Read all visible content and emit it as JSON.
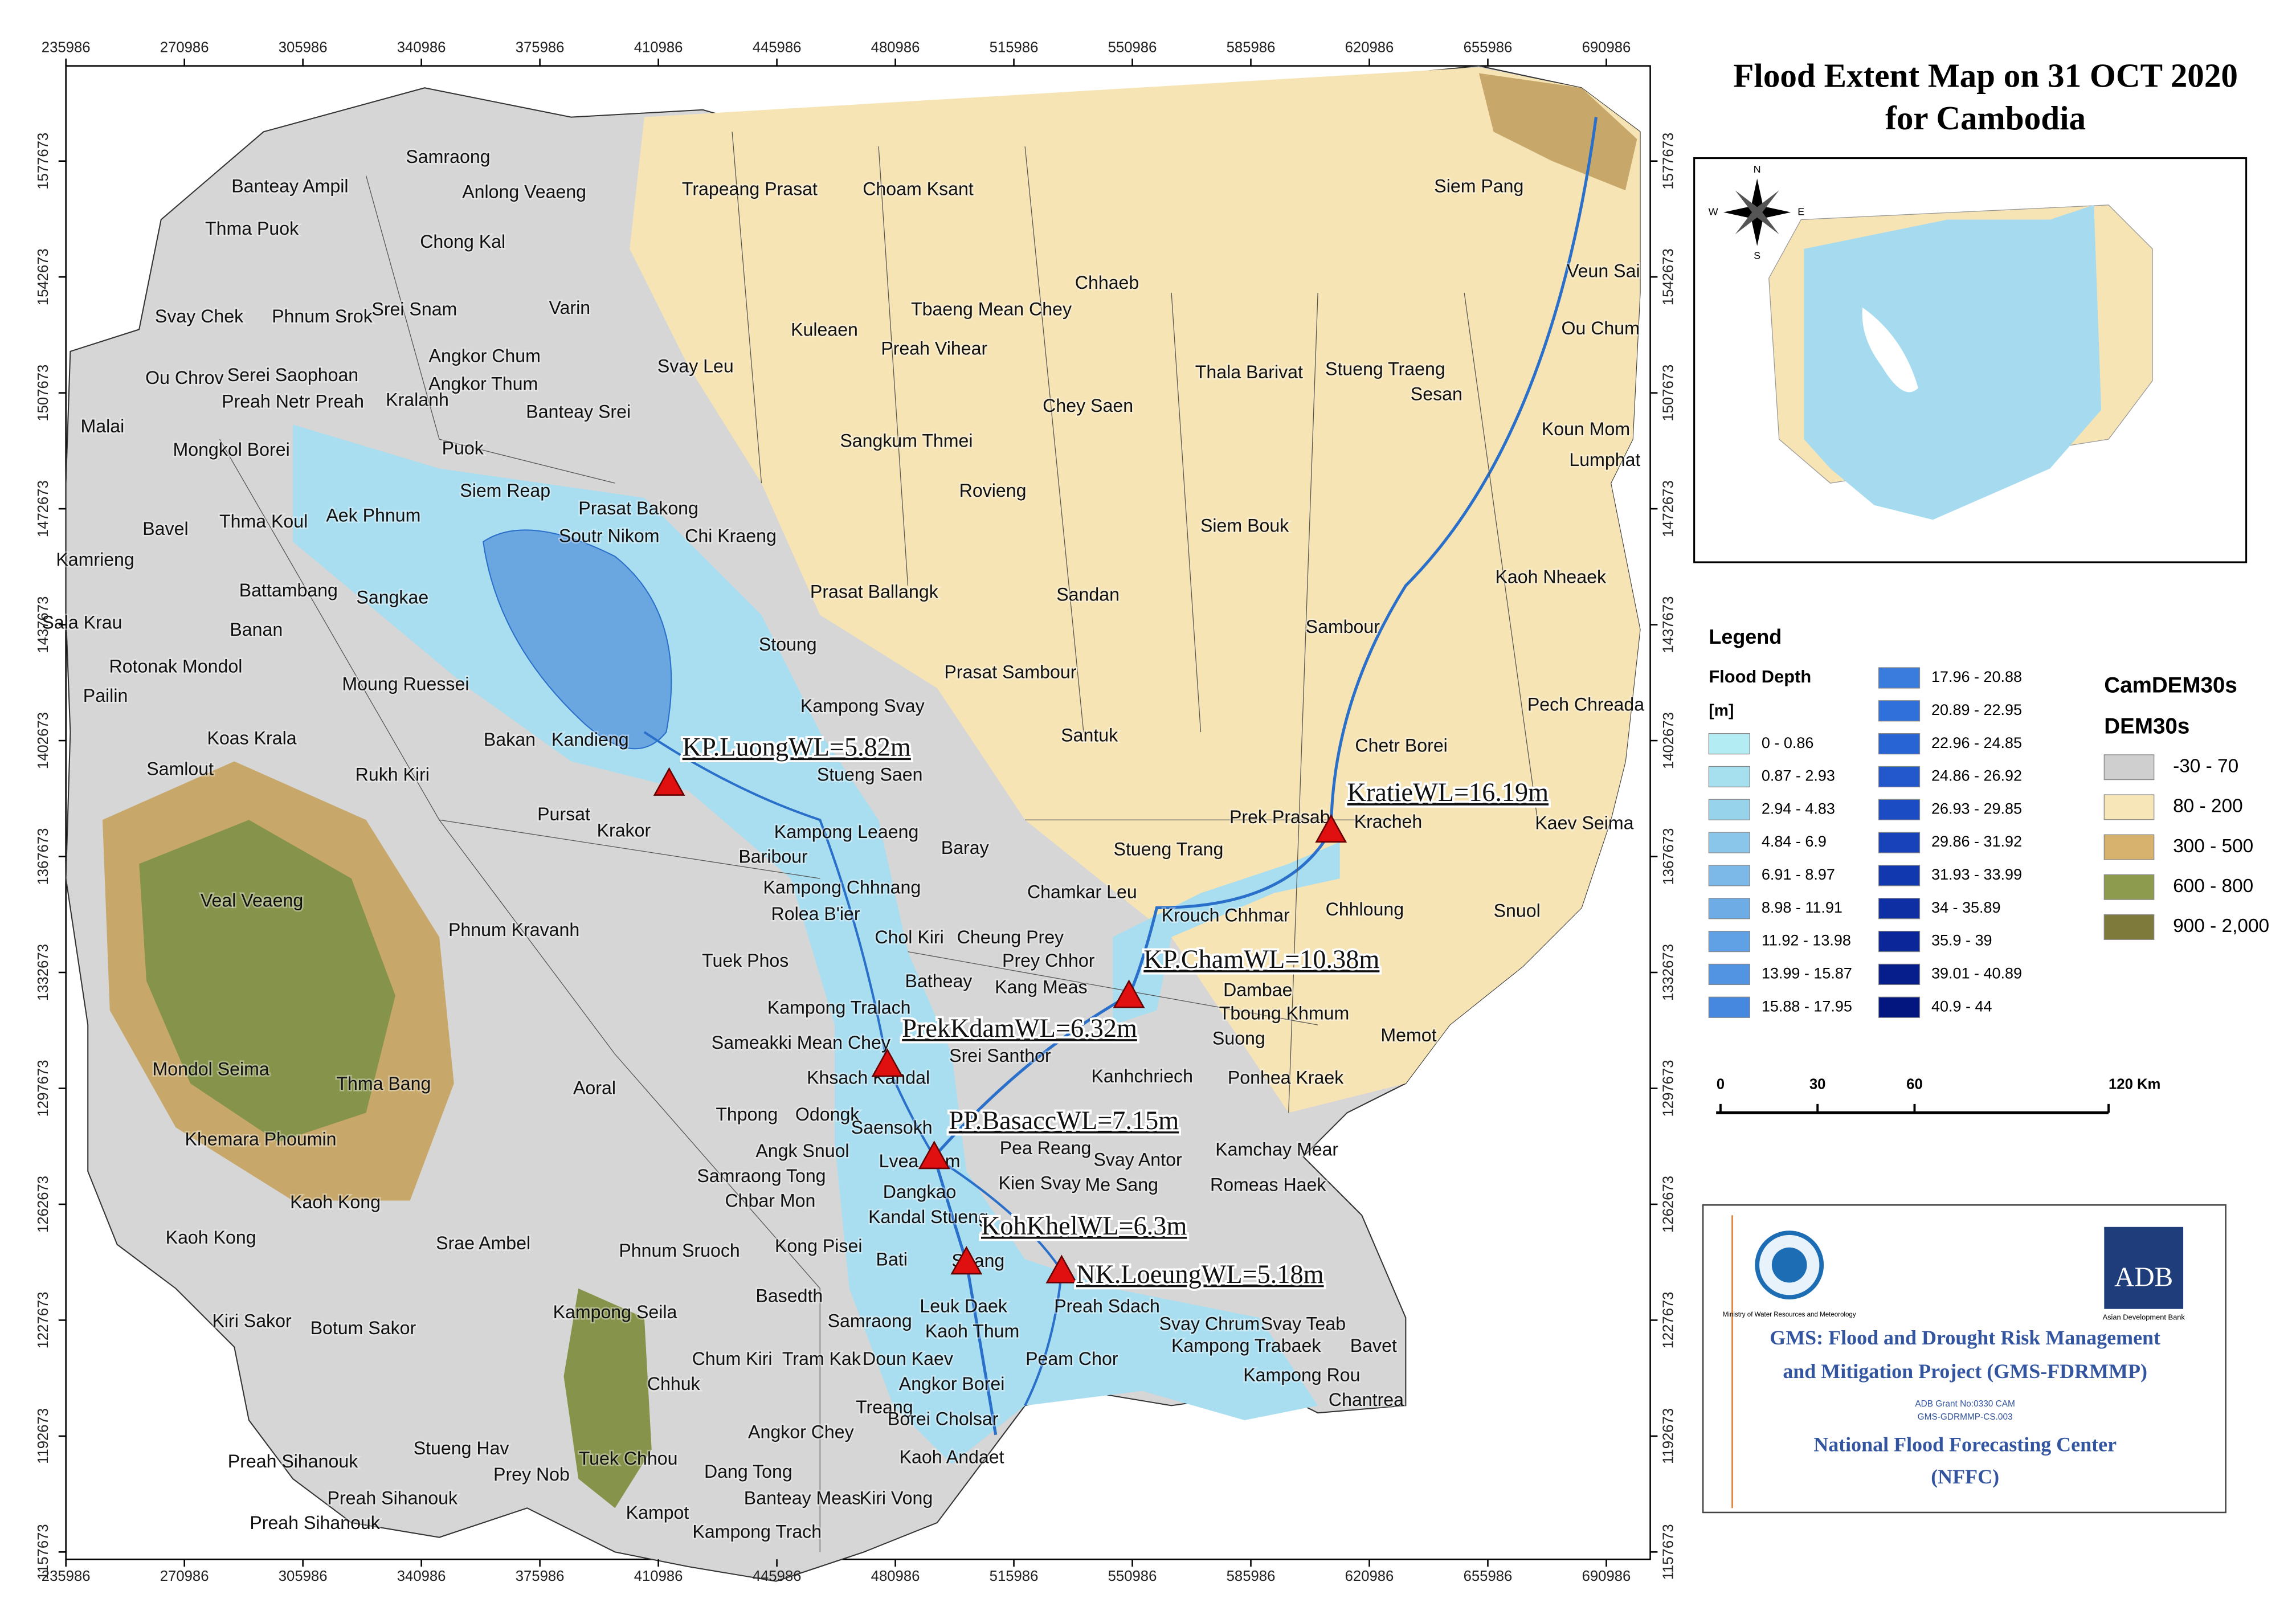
{
  "title_lines": [
    "Flood Extent Map on 31 OCT 2020",
    "for Cambodia"
  ],
  "x_ticks": [
    235986,
    270986,
    305986,
    340986,
    375986,
    410986,
    445986,
    480986,
    515986,
    550986,
    585986,
    620986,
    655986,
    690986
  ],
  "y_ticks": [
    1577673,
    1542673,
    1507673,
    1472673,
    1437673,
    1402673,
    1367673,
    1332673,
    1297673,
    1262673,
    1227673,
    1192673,
    1157673
  ],
  "districts": [
    "Samraong",
    "Banteay Ampil",
    "Anlong Veaeng",
    "Trapeang Prasat",
    "Choam Ksant",
    "Siem Pang",
    "Thma Puok",
    "Chong Kal",
    "Veun Sai",
    "Chhaeb",
    "Svay Chek",
    "Phnum Srok",
    "Srei Snam",
    "Varin",
    "Tbaeng Mean Chey",
    "Kuleaen",
    "Ou Chum",
    "Angkor Chum",
    "Svay Leu",
    "Preah Vihear",
    "Ou Chrov",
    "Serei Saophoan",
    "Angkor Thum",
    "Thala Barivat",
    "Stueng Traeng",
    "Preah Netr Preah",
    "Kralanh",
    "Banteay Srei",
    "Chey Saen",
    "Sesan",
    "Malai",
    "Koun Mom",
    "Mongkol Borei",
    "Puok",
    "Sangkum Thmei",
    "Lumphat",
    "Siem Reap",
    "Rovieng",
    "Prasat Bakong",
    "Aek Phnum",
    "Bavel",
    "Thma Koul",
    "Soutr Nikom",
    "Chi Kraeng",
    "Siem Bouk",
    "Kamrieng",
    "Kaoh Nheaek",
    "Battambang",
    "Sangkae",
    "Prasat Ballangk",
    "Sandan",
    "Sala Krau",
    "Banan",
    "Sambour",
    "Stoung",
    "Rotonak Mondol",
    "Prasat Sambour",
    "Moung Ruessei",
    "Pailin",
    "Kampong Svay",
    "Pech Chreada",
    "Santuk",
    "Koas Krala",
    "Bakan",
    "Kandieng",
    "Chetr Borei",
    "Samlout",
    "Rukh Kiri",
    "Stueng Saen",
    "Pursat",
    "Prek Prasab",
    "Kracheh",
    "Kaev Seima",
    "Krakor",
    "Kampong Leaeng",
    "Baray",
    "Stueng Trang",
    "Baribour",
    "Veal Veaeng",
    "Kampong Chhnang",
    "Chamkar Leu",
    "Rolea B'ier",
    "Chhloung",
    "Snuol",
    "Phnum Kravanh",
    "Krouch Chhmar",
    "Chol Kiri",
    "Cheung Prey",
    "Tuek Phos",
    "Prey Chhor",
    "Batheay",
    "Kang Meas",
    "Dambae",
    "Kampong Tralach",
    "Tboung Khmum",
    "Sameakki Mean Chey",
    "Suong",
    "Memot",
    "Srei Santhor",
    "Mondol Seima",
    "Khsach Kandal",
    "Kanhchriech",
    "Ponhea Kraek",
    "Thma Bang",
    "Aoral",
    "Thpong",
    "Odongk",
    "Khemara Phoumin",
    "Saensokh",
    "Pea Reang",
    "Kamchay Mear",
    "Svay Antor",
    "Angk Snuol",
    "Lvea Aem",
    "Samraong Tong",
    "Kien Svay",
    "Me Sang",
    "Romeas Haek",
    "Dangkao",
    "Chbar Mon",
    "Kaoh Kong",
    "Kandal Stueng",
    "Kaoh Kong",
    "Srae Ambel",
    "Phnum Sruoch",
    "Kong Pisei",
    "Bati",
    "Saang",
    "Kampong Seila",
    "Basedth",
    "Leuk Daek",
    "Preah Sdach",
    "Kiri Sakor",
    "Botum Sakor",
    "Samraong",
    "Kaoh Thum",
    "Svay Chrum",
    "Svay Teab",
    "Bavet",
    "Kampong Trabaek",
    "Chum Kiri",
    "Tram Kak",
    "Doun Kaev",
    "Peam Chor",
    "Kampong Rou",
    "Chhuk",
    "Angkor Borei",
    "Chantrea",
    "Treang",
    "Borei Cholsar",
    "Angkor Chey",
    "Stueng Hav",
    "Kaoh Andaet",
    "Preah Sihanouk",
    "Tuek Chhou",
    "Prey Nob",
    "Dang Tong",
    "Preah Sihanouk",
    "Banteay Meas",
    "Kiri Vong",
    "Preah Sihanouk",
    "Kampot",
    "Kampong Trach"
  ],
  "stations": [
    "KP.LuongWL=5.82m",
    "KratieWL=16.19m",
    "KP.ChamWL=10.38m",
    "PrekKdamWL=6.32m",
    "PP.BasaccWL=7.15m",
    "KohKhelWL=6.3m",
    "NK.LoeungWL=5.18m"
  ],
  "compass": [
    "N",
    "E",
    "S",
    "W"
  ],
  "legend": {
    "title": "Legend",
    "flood_title": "Flood Depth",
    "flood_unit": "[m]",
    "flood_classes": [
      {
        "label": "0 - 0.86",
        "color": "#b4ecf4"
      },
      {
        "label": "0.87 - 2.93",
        "color": "#a6e0ee"
      },
      {
        "label": "2.94 - 4.83",
        "color": "#98d3ec"
      },
      {
        "label": "4.84 - 6.9",
        "color": "#8ac6ea"
      },
      {
        "label": "6.91 - 8.97",
        "color": "#7cb9e8"
      },
      {
        "label": "8.98 - 11.91",
        "color": "#6eace6"
      },
      {
        "label": "11.92 - 13.98",
        "color": "#60a0e4"
      },
      {
        "label": "13.99 - 15.87",
        "color": "#5294e2"
      },
      {
        "label": "15.88 - 17.95",
        "color": "#4688e0"
      },
      {
        "label": "17.96 - 20.88",
        "color": "#3a7cde"
      },
      {
        "label": "20.89 - 22.95",
        "color": "#2f70da"
      },
      {
        "label": "22.96 - 24.85",
        "color": "#2864d4"
      },
      {
        "label": "24.86 - 26.92",
        "color": "#2258cc"
      },
      {
        "label": "26.93 - 29.85",
        "color": "#1c4cc4"
      },
      {
        "label": "29.86 - 31.92",
        "color": "#1742ba"
      },
      {
        "label": "31.93 - 33.99",
        "color": "#1238b0"
      },
      {
        "label": "34 - 35.89",
        "color": "#0e2ea4"
      },
      {
        "label": "35.9 - 39",
        "color": "#0a2698"
      },
      {
        "label": "39.01 - 40.89",
        "color": "#061e8c"
      },
      {
        "label": "40.9 - 44",
        "color": "#031680"
      }
    ],
    "dem_title": "CamDEM30s",
    "dem_subtitle": "DEM30s",
    "dem_classes": [
      {
        "label": "-30 - 70",
        "color": "#cfcfcf"
      },
      {
        "label": "80 - 200",
        "color": "#f7e6b8"
      },
      {
        "label": "300 - 500",
        "color": "#d7b26e"
      },
      {
        "label": "600 - 800",
        "color": "#8c9b4d"
      },
      {
        "label": "900 - 2,000",
        "color": "#7d7a3c"
      }
    ]
  },
  "scale_bar": {
    "ticks": [
      0,
      30,
      60,
      {
        "value": 120,
        "label": "120 Km"
      }
    ]
  },
  "info": {
    "ministry": "Ministry of Water Resources and Meteorology",
    "adb": "ADB",
    "adb_name": "Asian Development Bank",
    "project_lines": [
      "GMS: Flood and Drought Risk Management",
      "and Mitigation Project (GMS-FDRMMP)"
    ],
    "grant_lines": [
      "ADB Grant No:0330 CAM",
      "GMS-GDRMMP-CS.003"
    ],
    "center_lines": [
      "National Flood Forecasting Center",
      "(NFFC)"
    ]
  }
}
